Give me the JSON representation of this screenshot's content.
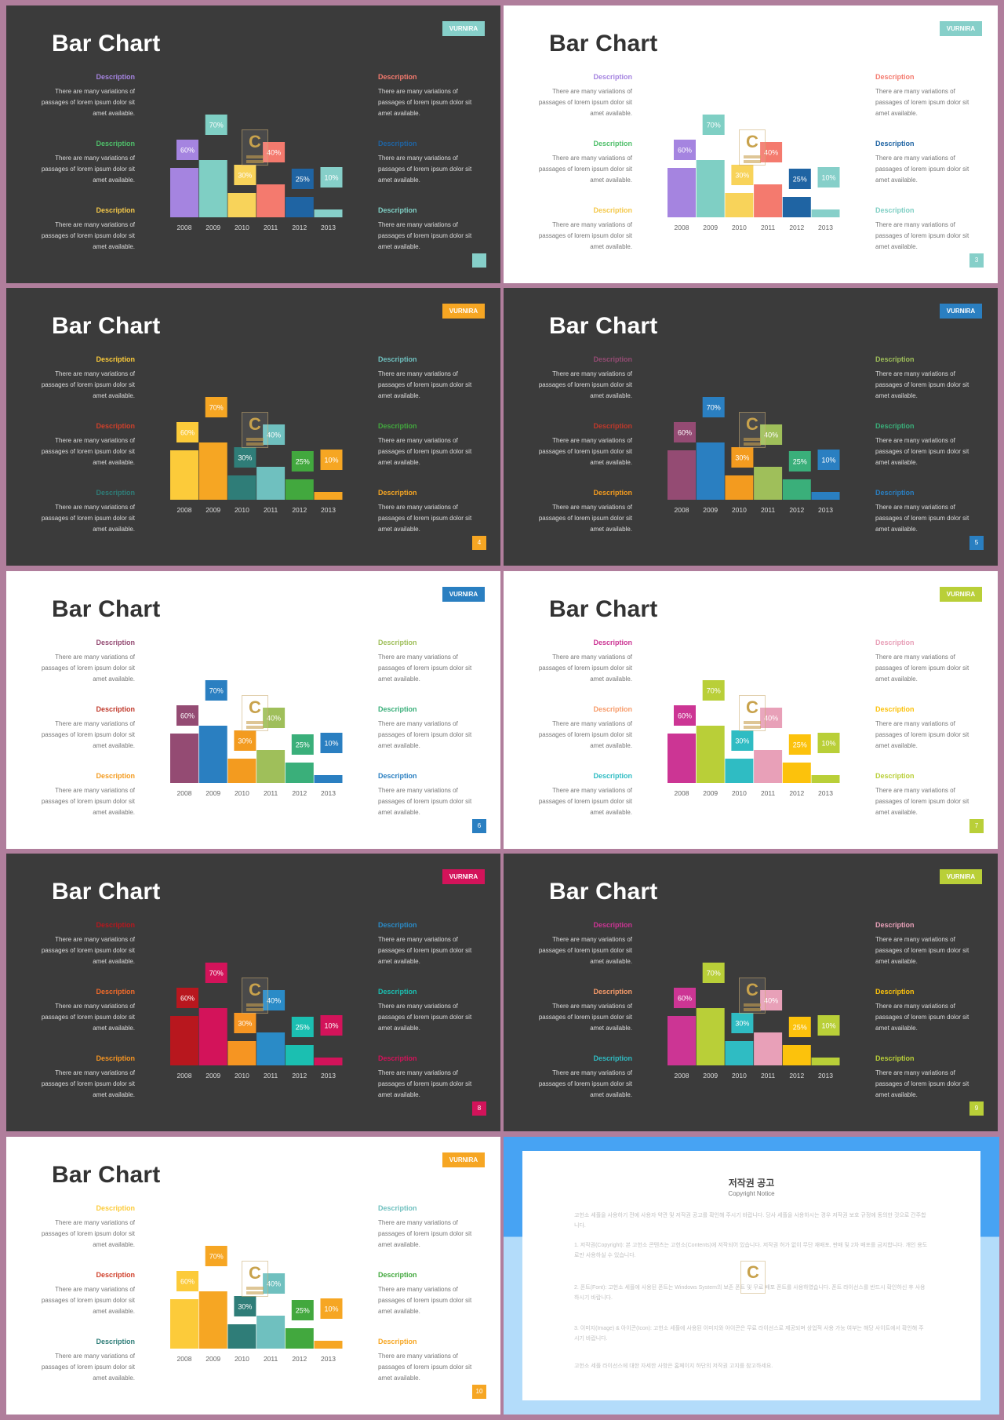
{
  "slides": [
    {
      "theme": "dark",
      "title": "Bar Chart",
      "brand": "VURNIRA",
      "brand_color": "#86cfc9",
      "page": "",
      "page_color": "#86cfc9",
      "bar_colors": [
        "#a584e0",
        "#7fcfc4",
        "#f8d35a",
        "#f47a6e",
        "#1f64a3",
        "#86cfc9"
      ],
      "descs": [
        {
          "heading": "Description",
          "color": "#a584e0"
        },
        {
          "heading": "Description",
          "color": "#4fbf6a"
        },
        {
          "heading": "Description",
          "color": "#f4c84a"
        },
        {
          "heading": "Description",
          "color": "#f47a6e"
        },
        {
          "heading": "Description",
          "color": "#1f64a3"
        },
        {
          "heading": "Description",
          "color": "#7fcfc4"
        }
      ]
    },
    {
      "theme": "light",
      "title": "Bar Chart",
      "brand": "VURNIRA",
      "brand_color": "#86cfc9",
      "page": "3",
      "page_color": "#86cfc9",
      "bar_colors": [
        "#a584e0",
        "#7fcfc4",
        "#f8d35a",
        "#f47a6e",
        "#1f64a3",
        "#86cfc9"
      ],
      "descs": [
        {
          "heading": "Description",
          "color": "#a584e0"
        },
        {
          "heading": "Description",
          "color": "#4fbf6a"
        },
        {
          "heading": "Description",
          "color": "#f4c84a"
        },
        {
          "heading": "Description",
          "color": "#f47a6e"
        },
        {
          "heading": "Description",
          "color": "#1f64a3"
        },
        {
          "heading": "Description",
          "color": "#7fcfc4"
        }
      ]
    },
    {
      "theme": "dark",
      "title": "Bar Chart",
      "brand": "VURNIRA",
      "brand_color": "#f6a623",
      "page": "4",
      "page_color": "#f6a623",
      "bar_colors": [
        "#fccb3a",
        "#f6a623",
        "#2f7d78",
        "#6fc0bf",
        "#42a83e",
        "#f6a623"
      ],
      "descs": [
        {
          "heading": "Description",
          "color": "#fccb3a"
        },
        {
          "heading": "Description",
          "color": "#d0402b"
        },
        {
          "heading": "Description",
          "color": "#2f7d78"
        },
        {
          "heading": "Description",
          "color": "#6fc0bf"
        },
        {
          "heading": "Description",
          "color": "#42a83e"
        },
        {
          "heading": "Description",
          "color": "#f6a623"
        }
      ]
    },
    {
      "theme": "dark",
      "title": "Bar Chart",
      "brand": "VURNIRA",
      "brand_color": "#2a7fc1",
      "page": "5",
      "page_color": "#2a7fc1",
      "bar_colors": [
        "#944b73",
        "#2a7fc1",
        "#f39b1f",
        "#9fbf5a",
        "#3aaf7a",
        "#2a7fc1"
      ],
      "descs": [
        {
          "heading": "Description",
          "color": "#944b73"
        },
        {
          "heading": "Description",
          "color": "#c0392b"
        },
        {
          "heading": "Description",
          "color": "#f39b1f"
        },
        {
          "heading": "Description",
          "color": "#9fbf5a"
        },
        {
          "heading": "Description",
          "color": "#3aaf7a"
        },
        {
          "heading": "Description",
          "color": "#2a7fc1"
        }
      ]
    },
    {
      "theme": "light",
      "title": "Bar Chart",
      "brand": "VURNIRA",
      "brand_color": "#2a7fc1",
      "page": "6",
      "page_color": "#2a7fc1",
      "bar_colors": [
        "#944b73",
        "#2a7fc1",
        "#f39b1f",
        "#9fbf5a",
        "#3aaf7a",
        "#2a7fc1"
      ],
      "descs": [
        {
          "heading": "Description",
          "color": "#944b73"
        },
        {
          "heading": "Description",
          "color": "#c0392b"
        },
        {
          "heading": "Description",
          "color": "#f39b1f"
        },
        {
          "heading": "Description",
          "color": "#9fbf5a"
        },
        {
          "heading": "Description",
          "color": "#3aaf7a"
        },
        {
          "heading": "Description",
          "color": "#2a7fc1"
        }
      ]
    },
    {
      "theme": "light",
      "title": "Bar Chart",
      "brand": "VURNIRA",
      "brand_color": "#b9cf38",
      "page": "7",
      "page_color": "#b9cf38",
      "bar_colors": [
        "#cc3594",
        "#b9cf38",
        "#2fbcc3",
        "#e8a0b8",
        "#fcc20c",
        "#b9cf38"
      ],
      "descs": [
        {
          "heading": "Description",
          "color": "#cc3594"
        },
        {
          "heading": "Description",
          "color": "#f79b6a"
        },
        {
          "heading": "Description",
          "color": "#2fbcc3"
        },
        {
          "heading": "Description",
          "color": "#e8a0b8"
        },
        {
          "heading": "Description",
          "color": "#fcc20c"
        },
        {
          "heading": "Description",
          "color": "#b9cf38"
        }
      ]
    },
    {
      "theme": "dark",
      "title": "Bar Chart",
      "brand": "VURNIRA",
      "brand_color": "#d3135a",
      "page": "8",
      "page_color": "#d3135a",
      "bar_colors": [
        "#b8171e",
        "#d3135a",
        "#f69522",
        "#2a8bc7",
        "#1bbfb1",
        "#d3135a"
      ],
      "descs": [
        {
          "heading": "Description",
          "color": "#b8171e"
        },
        {
          "heading": "Description",
          "color": "#f26b2a"
        },
        {
          "heading": "Description",
          "color": "#f69522"
        },
        {
          "heading": "Description",
          "color": "#2a8bc7"
        },
        {
          "heading": "Description",
          "color": "#1bbfb1"
        },
        {
          "heading": "Description",
          "color": "#d3135a"
        }
      ]
    },
    {
      "theme": "dark",
      "title": "Bar Chart",
      "brand": "VURNIRA",
      "brand_color": "#b9cf38",
      "page": "9",
      "page_color": "#b9cf38",
      "bar_colors": [
        "#cc3594",
        "#b9cf38",
        "#2fbcc3",
        "#e8a0b8",
        "#fcc20c",
        "#b9cf38"
      ],
      "descs": [
        {
          "heading": "Description",
          "color": "#cc3594"
        },
        {
          "heading": "Description",
          "color": "#f79b6a"
        },
        {
          "heading": "Description",
          "color": "#2fbcc3"
        },
        {
          "heading": "Description",
          "color": "#e8a0b8"
        },
        {
          "heading": "Description",
          "color": "#fcc20c"
        },
        {
          "heading": "Description",
          "color": "#b9cf38"
        }
      ]
    },
    {
      "theme": "light",
      "title": "Bar Chart",
      "brand": "VURNIRA",
      "brand_color": "#f6a623",
      "page": "10",
      "page_color": "#f6a623",
      "bar_colors": [
        "#fccb3a",
        "#f6a623",
        "#2f7d78",
        "#6fc0bf",
        "#42a83e",
        "#f6a623"
      ],
      "descs": [
        {
          "heading": "Description",
          "color": "#fccb3a"
        },
        {
          "heading": "Description",
          "color": "#d0402b"
        },
        {
          "heading": "Description",
          "color": "#2f7d78"
        },
        {
          "heading": "Description",
          "color": "#6fc0bf"
        },
        {
          "heading": "Description",
          "color": "#42a83e"
        },
        {
          "heading": "Description",
          "color": "#f6a623"
        }
      ]
    }
  ],
  "desc_body": "There are many variations of passages of lorem ipsum dolor sit amet available.",
  "chart_data": {
    "type": "bar",
    "categories": [
      "2008",
      "2009",
      "2010",
      "2011",
      "2012",
      "2013"
    ],
    "values": [
      60,
      70,
      30,
      40,
      25,
      10
    ],
    "labels": [
      "60%",
      "70%",
      "30%",
      "40%",
      "25%",
      "10%"
    ],
    "title": "Bar Chart",
    "xlabel": "",
    "ylabel": "",
    "ylim": [
      0,
      100
    ],
    "grid": false
  },
  "copyright": {
    "title": "저작권 공고",
    "subtitle": "Copyright Notice",
    "paragraphs": [
      "고헌소 세플을 사용하기 전에 사용자 약관 및 저작권 공고를 확인해 주시기 바랍니다. 당사 세플을 사용하시는 경우 저작권 보호 규정에 동의한 것으로 간주합니다.",
      "1. 저작권(Copyright): 본 고헌소 콘텐츠는 고헌소(Contents)에 저작되어 있습니다. 저작권 허가 없이 무단 재배포, 판매 및 2차 배포를 금지합니다. 개인 용도로만 사용하실 수 있습니다.",
      "2. 폰트(Font): 고헌소 세플에 사용된 폰트는 Windows System의 보존 폰트 및 무료 배포 폰트를 사용하였습니다. 폰트 라이선스를 반드시 확인하신 후 사용하시기 바랍니다.",
      "3. 이미지(Image) & 아이콘(Icon): 고헌소 세플에 사용된 이미지와 아이콘은 무료 라이선스로 제공되며 상업적 사용 가능 여부는 해당 사이트에서 확인해 주시기 바랍니다.",
      "고헌소 세플 라이선스에 대한 자세한 사항은 홈페이지 하단의 저작권 고지를 참고하세요."
    ]
  }
}
